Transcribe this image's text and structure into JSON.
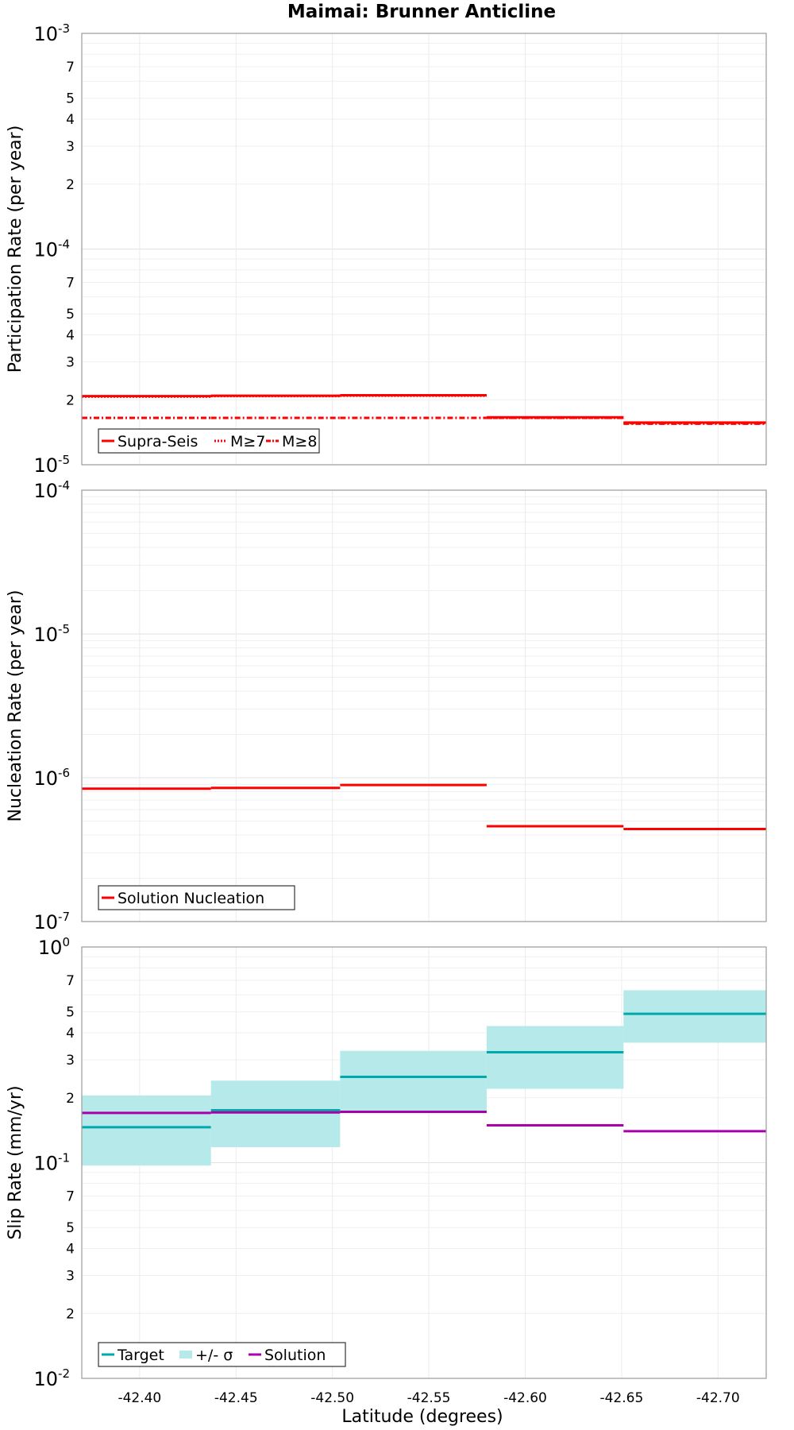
{
  "title": "Maimai: Brunner Anticline",
  "xlabel": "Latitude (degrees)",
  "chart_data": [
    {
      "type": "line",
      "ylabel": "Participation Rate (per year)",
      "yscale": "log",
      "ylim": [
        1e-05,
        0.001
      ],
      "xlim": [
        -42.37,
        -42.725
      ],
      "grid": true,
      "legend_position": "bottom-left",
      "legend": [
        "Supra-Seis",
        "M≥7",
        "M≥8"
      ],
      "x_breaks": [
        -42.37,
        -42.437,
        -42.504,
        -42.58,
        -42.651,
        -42.725
      ],
      "series": [
        {
          "name": "Supra-Seis",
          "color": "#ff0000",
          "style": "solid",
          "values": [
            2.08e-05,
            2.09e-05,
            2.1e-05,
            1.66e-05,
            1.57e-05
          ]
        },
        {
          "name": "M≥7",
          "color": "#ff0000",
          "style": "dotted",
          "values": [
            2.07e-05,
            2.08e-05,
            2.09e-05,
            1.65e-05,
            1.56e-05
          ]
        },
        {
          "name": "M≥8",
          "color": "#ff0000",
          "style": "dashdot",
          "values": [
            1.65e-05,
            1.65e-05,
            1.65e-05,
            1.65e-05,
            1.55e-05
          ]
        }
      ]
    },
    {
      "type": "line",
      "ylabel": "Nucleation Rate (per year)",
      "yscale": "log",
      "ylim": [
        1e-07,
        0.0001
      ],
      "xlim": [
        -42.37,
        -42.725
      ],
      "grid": true,
      "legend_position": "bottom-left",
      "legend": [
        "Solution Nucleation"
      ],
      "x_breaks": [
        -42.37,
        -42.437,
        -42.504,
        -42.58,
        -42.651,
        -42.725
      ],
      "series": [
        {
          "name": "Solution Nucleation",
          "color": "#ff0000",
          "style": "solid",
          "values": [
            8.4e-07,
            8.5e-07,
            8.9e-07,
            4.6e-07,
            4.4e-07
          ]
        }
      ]
    },
    {
      "type": "line",
      "ylabel": "Slip Rate (mm/yr)",
      "yscale": "log",
      "ylim": [
        0.01,
        1
      ],
      "xlim": [
        -42.37,
        -42.725
      ],
      "grid": true,
      "legend_position": "bottom-left",
      "legend": [
        "Target",
        "+/- σ",
        "Solution"
      ],
      "x_breaks": [
        -42.37,
        -42.437,
        -42.504,
        -42.58,
        -42.651,
        -42.725
      ],
      "series": [
        {
          "name": "Target",
          "color": "#00aaaa",
          "style": "solid",
          "values": [
            0.146,
            0.175,
            0.25,
            0.325,
            0.49
          ]
        },
        {
          "name": "+/- σ",
          "color": "#b6e9e9",
          "style": "band",
          "lower": [
            0.097,
            0.118,
            0.17,
            0.22,
            0.36
          ],
          "upper": [
            0.205,
            0.24,
            0.33,
            0.43,
            0.63
          ]
        },
        {
          "name": "Solution",
          "color": "#aa00aa",
          "style": "solid",
          "values": [
            0.17,
            0.171,
            0.172,
            0.149,
            0.14
          ]
        }
      ]
    }
  ],
  "x_ticks": [
    "-42.40",
    "-42.45",
    "-42.50",
    "-42.55",
    "-42.60",
    "-42.65",
    "-42.70"
  ],
  "x_tick_values": [
    -42.4,
    -42.45,
    -42.5,
    -42.55,
    -42.6,
    -42.65,
    -42.7
  ],
  "panel_ticks": [
    {
      "decades": [
        "10",
        "10",
        "10"
      ],
      "exps": [
        "-5",
        "-4",
        "-3"
      ],
      "minor": [
        "2",
        "3",
        "4",
        "5",
        "7"
      ]
    },
    {
      "decades": [
        "10",
        "10",
        "10",
        "10"
      ],
      "exps": [
        "-7",
        "-6",
        "-5",
        "-4"
      ],
      "minor": []
    },
    {
      "decades": [
        "10",
        "10",
        "10"
      ],
      "exps": [
        "-2",
        "-1",
        "0"
      ],
      "minor": [
        "2",
        "3",
        "4",
        "5",
        "7"
      ]
    }
  ]
}
